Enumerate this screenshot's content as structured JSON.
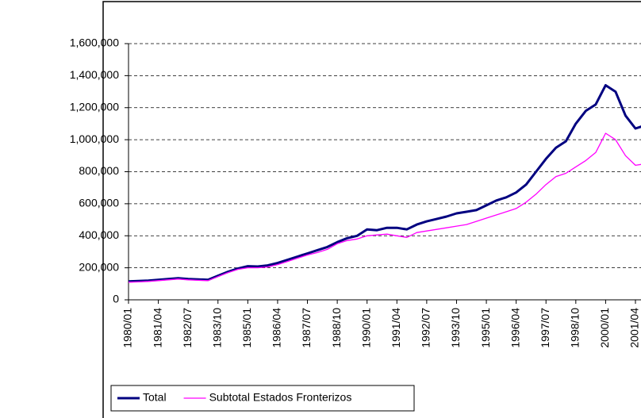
{
  "chart_data": {
    "type": "line",
    "categories": [
      "1980/01",
      null,
      null,
      "1981/04",
      null,
      null,
      "1982/07",
      null,
      null,
      "1983/10",
      null,
      null,
      "1985/01",
      null,
      null,
      "1986/04",
      null,
      null,
      "1987/07",
      null,
      null,
      "1988/10",
      null,
      null,
      "1990/01",
      null,
      null,
      "1991/04",
      null,
      null,
      "1992/07",
      null,
      null,
      "1993/10",
      null,
      null,
      "1995/01",
      null,
      null,
      "1996/04",
      null,
      null,
      "1997/07",
      null,
      null,
      "1998/10",
      null,
      null,
      "2000/01",
      null,
      null,
      "2001/04",
      null
    ],
    "series": [
      {
        "name": "Total",
        "color": "#000080",
        "values": [
          115000,
          118000,
          120000,
          125000,
          130000,
          135000,
          130000,
          128000,
          125000,
          150000,
          175000,
          195000,
          210000,
          208000,
          215000,
          230000,
          250000,
          270000,
          290000,
          310000,
          330000,
          360000,
          385000,
          400000,
          440000,
          435000,
          450000,
          450000,
          440000,
          470000,
          490000,
          505000,
          520000,
          540000,
          550000,
          560000,
          590000,
          620000,
          640000,
          670000,
          720000,
          800000,
          880000,
          950000,
          990000,
          1100000,
          1180000,
          1220000,
          1340000,
          1300000,
          1150000,
          1070000,
          1090000
        ]
      },
      {
        "name": "Subtotal Estados Fronterizos",
        "color": "#ff00ff",
        "values": [
          110000,
          112000,
          115000,
          120000,
          125000,
          130000,
          125000,
          122000,
          120000,
          145000,
          170000,
          190000,
          200000,
          200000,
          205000,
          220000,
          240000,
          260000,
          280000,
          295000,
          315000,
          350000,
          370000,
          380000,
          400000,
          405000,
          410000,
          400000,
          390000,
          420000,
          430000,
          440000,
          450000,
          460000,
          470000,
          490000,
          510000,
          530000,
          550000,
          570000,
          610000,
          660000,
          720000,
          770000,
          790000,
          830000,
          870000,
          920000,
          1040000,
          1000000,
          900000,
          840000,
          850000
        ]
      }
    ],
    "ylim": [
      0,
      1600000
    ],
    "yticks": [
      0,
      {
        "value": 200000,
        "label": "200,000"
      },
      {
        "value": 400000,
        "label": "400,000"
      },
      {
        "value": 600000,
        "label": "600,000"
      },
      {
        "value": 800000,
        "label": "800,000"
      },
      {
        "value": 1000000,
        "label": "1,000,000"
      },
      {
        "value": 1200000,
        "label": "1,200,000"
      },
      {
        "value": 1400000,
        "label": "1,400,000"
      },
      {
        "value": 1600000,
        "label": "1,600,000"
      }
    ],
    "grid": true,
    "legend": "bottom-left"
  }
}
